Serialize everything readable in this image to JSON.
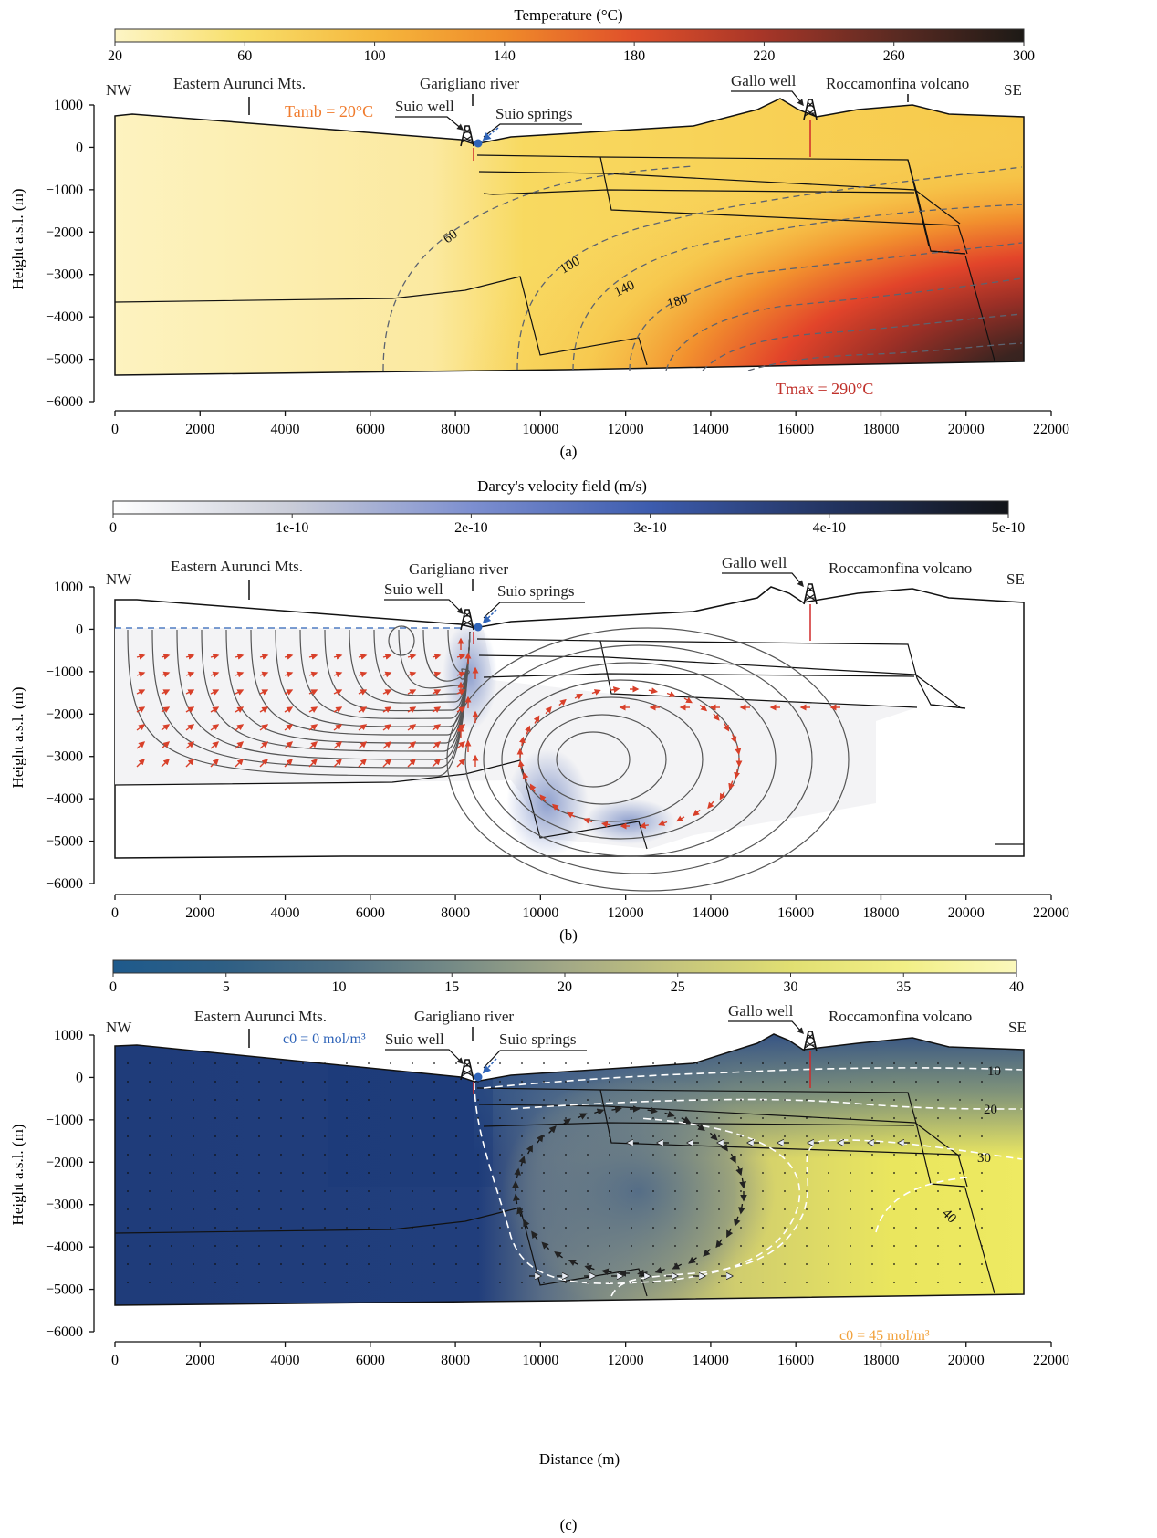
{
  "chart_data": [
    {
      "panel": "(a)",
      "type": "heatmap",
      "colorbar": {
        "title": "Temperature (°C)",
        "ticks": [
          "20",
          "60",
          "100",
          "140",
          "180",
          "220",
          "260",
          "300"
        ],
        "range": [
          20,
          300
        ],
        "colors": [
          "#fdf5c6",
          "#f8df6a",
          "#f5b63c",
          "#ef8a2a",
          "#e0502a",
          "#a83628",
          "#5a2a22",
          "#1d1a16"
        ]
      },
      "x_ticks": [
        "0",
        "2000",
        "4000",
        "6000",
        "8000",
        "10000",
        "12000",
        "14000",
        "16000",
        "18000",
        "20000",
        "22000"
      ],
      "y_ticks": [
        "1000",
        "0",
        "−1000",
        "−2000",
        "−3000",
        "−4000",
        "−5000",
        "−6000"
      ],
      "ylabel": "Height a.s.l. (m)",
      "xlim": [
        0,
        22000
      ],
      "ylim": [
        -6000,
        1000
      ],
      "contours": [
        {
          "label": "60",
          "value": 60
        },
        {
          "label": "100",
          "value": 100
        },
        {
          "label": "140",
          "value": 140
        },
        {
          "label": "180",
          "value": 180
        }
      ],
      "annotations": {
        "nw": "NW",
        "se": "SE",
        "aurunci": "Eastern Aurunci Mts.",
        "garigliano": "Garigliano river",
        "suio_well": "Suio well",
        "suio_springs": "Suio springs",
        "gallo_well": "Gallo well",
        "roccamonfina": "Roccamonfina volcano",
        "tamb": "Tamb = 20°C",
        "tmax": "Tmax = 290°C"
      }
    },
    {
      "panel": "(b)",
      "type": "heatmap",
      "colorbar": {
        "title": "Darcy's velocity field (m/s)",
        "ticks": [
          "0",
          "1e-10",
          "2e-10",
          "3e-10",
          "4e-10",
          "5e-10"
        ],
        "range": [
          0,
          5e-10
        ],
        "colors": [
          "#ffffff",
          "#c9ccd8",
          "#7d8fd0",
          "#3d5cae",
          "#233461",
          "#121418"
        ]
      },
      "x_ticks": [
        "0",
        "2000",
        "4000",
        "6000",
        "8000",
        "10000",
        "12000",
        "14000",
        "16000",
        "18000",
        "20000",
        "22000"
      ],
      "y_ticks": [
        "1000",
        "0",
        "−1000",
        "−2000",
        "−3000",
        "−4000",
        "−5000",
        "−6000"
      ],
      "ylabel": "Height a.s.l. (m)",
      "xlim": [
        0,
        22000
      ],
      "ylim": [
        -6000,
        1000
      ],
      "annotations": {
        "nw": "NW",
        "se": "SE",
        "aurunci": "Eastern Aurunci Mts.",
        "garigliano": "Garigliano river",
        "suio_well": "Suio well",
        "suio_springs": "Suio springs",
        "gallo_well": "Gallo well",
        "roccamonfina": "Roccamonfina volcano"
      }
    },
    {
      "panel": "(c)",
      "type": "heatmap",
      "colorbar": {
        "title": "",
        "ticks": [
          "0",
          "5",
          "10",
          "15",
          "20",
          "25",
          "30",
          "35",
          "40"
        ],
        "range": [
          0,
          40
        ],
        "colors": [
          "#1e5a8c",
          "#2f5f84",
          "#4c6e83",
          "#758a86",
          "#a2a886",
          "#c6c57c",
          "#e1df72",
          "#f2ef86",
          "#fbf8bc"
        ]
      },
      "x_ticks": [
        "0",
        "2000",
        "4000",
        "6000",
        "8000",
        "10000",
        "12000",
        "14000",
        "16000",
        "18000",
        "20000",
        "22000"
      ],
      "y_ticks": [
        "1000",
        "0",
        "−1000",
        "−2000",
        "−3000",
        "−4000",
        "−5000",
        "−6000"
      ],
      "ylabel": "Height a.s.l. (m)",
      "xlabel": "Distance (m)",
      "xlim": [
        0,
        22000
      ],
      "ylim": [
        -6000,
        1000
      ],
      "contours": [
        {
          "label": "10",
          "value": 10
        },
        {
          "label": "20",
          "value": 20
        },
        {
          "label": "30",
          "value": 30
        },
        {
          "label": "40",
          "value": 40
        }
      ],
      "annotations": {
        "nw": "NW",
        "se": "SE",
        "aurunci": "Eastern Aurunci Mts.",
        "garigliano": "Garigliano river",
        "suio_well": "Suio well",
        "suio_springs": "Suio springs",
        "gallo_well": "Gallo well",
        "roccamonfina": "Roccamonfina volcano",
        "c0_low": "c0 = 0 mol/m³",
        "c0_high": "c0 = 45 mol/m³"
      }
    }
  ],
  "colors": {
    "annotation_orange": "#f07c2e",
    "annotation_red": "#c0302a",
    "annotation_blue": "#2e63b8",
    "annotation_amber": "#f2a13a",
    "flow_arrow_red": "#d8402a"
  }
}
